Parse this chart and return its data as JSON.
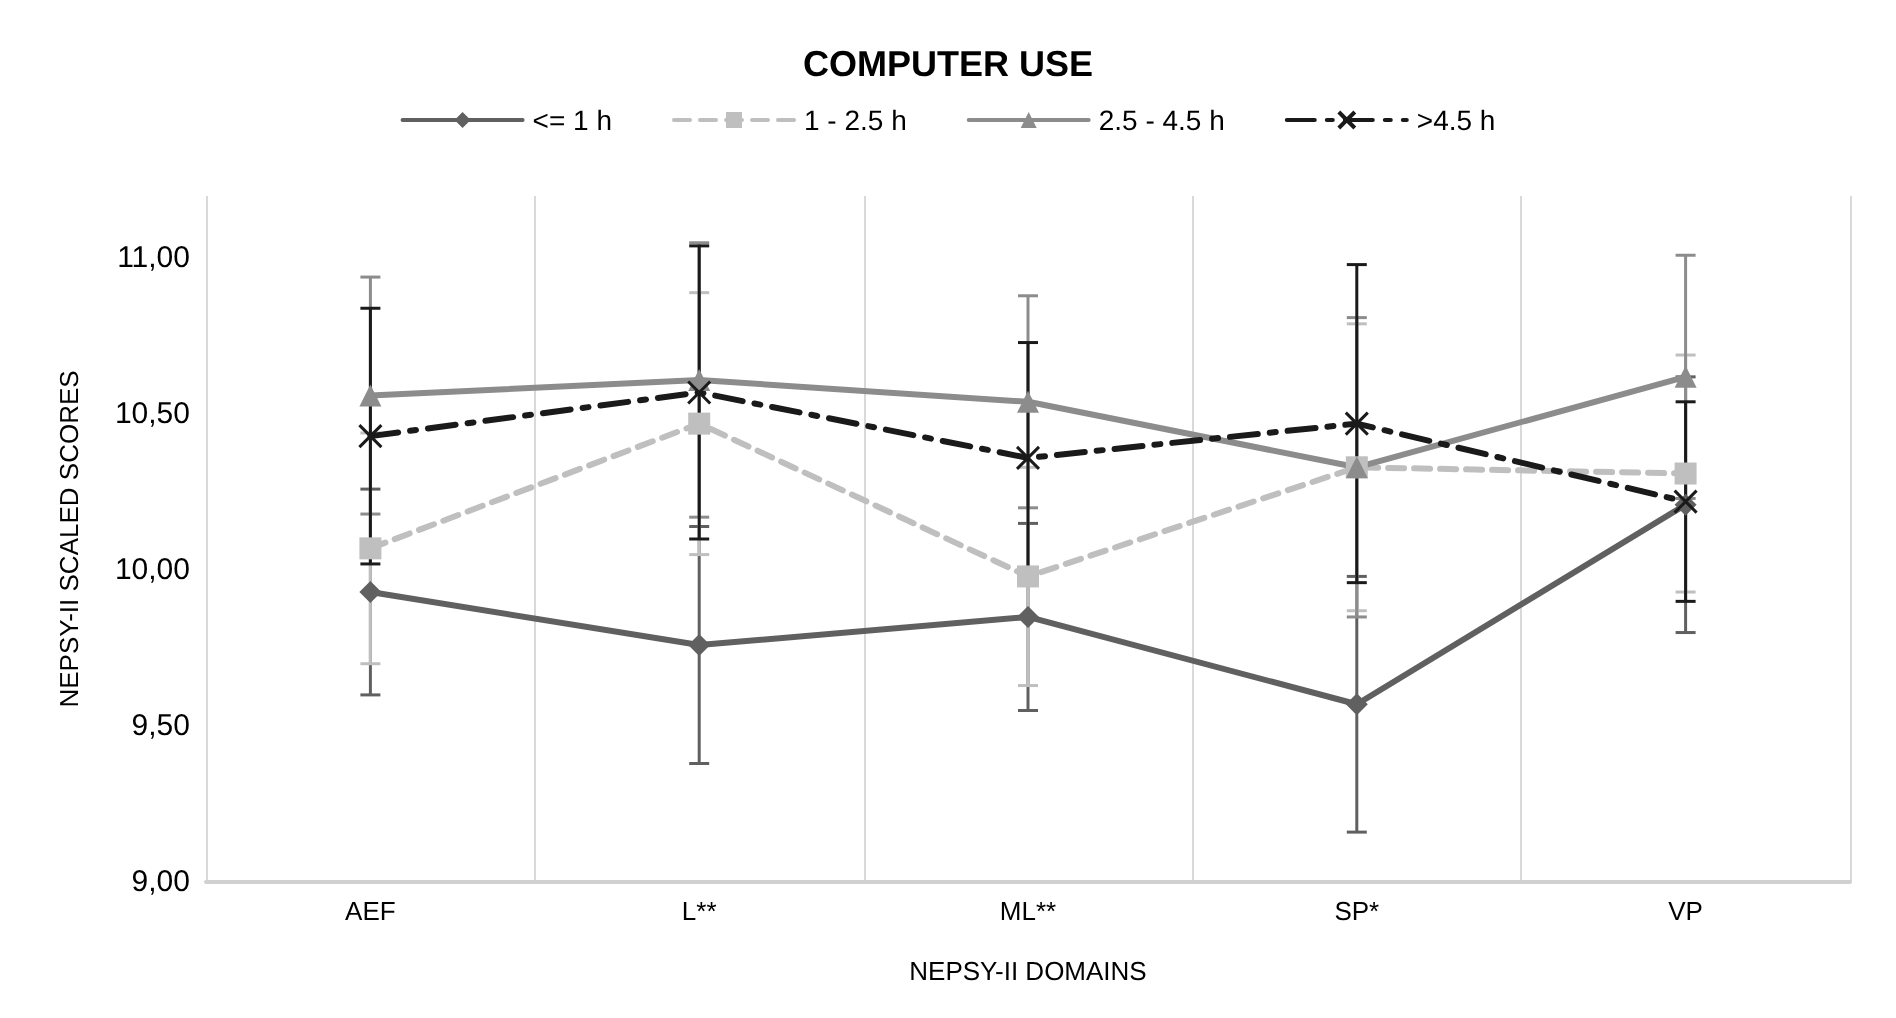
{
  "chart_data": {
    "type": "line",
    "title": "COMPUTER USE",
    "xlabel": "NEPSY-II DOMAINS",
    "ylabel": "NEPSY-II SCALED SCORES",
    "categories": [
      "AEF",
      "L**",
      "ML**",
      "SP*",
      "VP"
    ],
    "series": [
      {
        "name": "<= 1 h",
        "color": "#606060",
        "marker": "diamond",
        "line_style": "solid",
        "values": [
          9.93,
          9.76,
          9.85,
          9.57,
          10.21
        ],
        "errors": [
          0.33,
          0.38,
          0.3,
          0.41,
          0.41
        ]
      },
      {
        "name": "1 - 2.5 h",
        "color": "#bfbfbf",
        "marker": "square",
        "line_style": "dashed",
        "values": [
          10.07,
          10.47,
          9.98,
          10.33,
          10.31
        ],
        "errors": [
          0.37,
          0.42,
          0.35,
          0.46,
          0.38
        ]
      },
      {
        "name": "2.5 - 4.5 h",
        "color": "#8c8c8c",
        "marker": "triangle",
        "line_style": "solid",
        "values": [
          10.56,
          10.61,
          10.54,
          10.33,
          10.62
        ],
        "errors": [
          0.38,
          0.44,
          0.34,
          0.48,
          0.39
        ]
      },
      {
        "name": ">4.5 h",
        "color": "#1a1a1a",
        "marker": "cross",
        "line_style": "dashed",
        "values": [
          10.43,
          10.57,
          10.36,
          10.47,
          10.22
        ],
        "errors": [
          0.41,
          0.47,
          0.37,
          0.51,
          0.32
        ]
      }
    ],
    "ylim": [
      9,
      11.2
    ],
    "yticks": [
      {
        "value": 9,
        "label": "9,00"
      },
      {
        "value": 9.5,
        "label": "9,50"
      },
      {
        "value": 10,
        "label": "10,00"
      },
      {
        "value": 10.5,
        "label": "10,50"
      },
      {
        "value": 11,
        "label": "11,00"
      }
    ],
    "grid": "x",
    "legend": "top"
  }
}
